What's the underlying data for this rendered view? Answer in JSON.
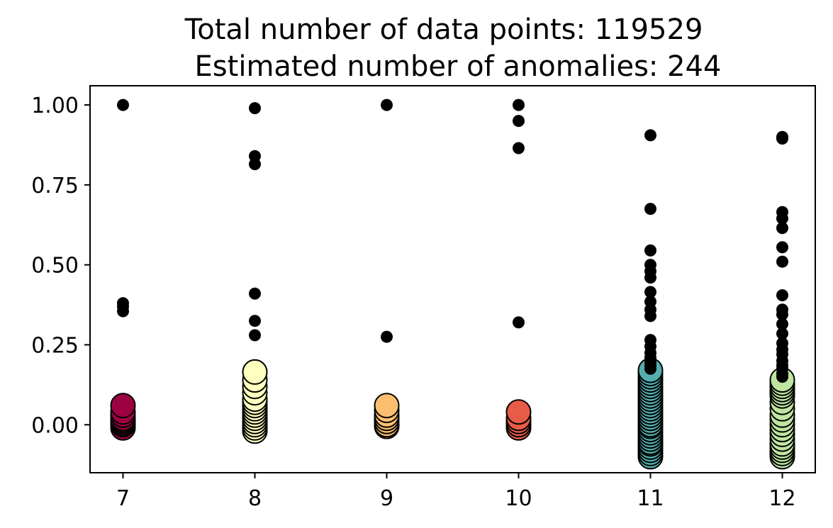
{
  "chart_data": {
    "type": "scatter",
    "title_line1": "Total number of data points: 119529",
    "title_line2": "Estimated number of anomalies: 244",
    "xlabel": "",
    "ylabel": "",
    "xlim": [
      6.75,
      12.25
    ],
    "ylim": [
      -0.15,
      1.06
    ],
    "grid": false,
    "xticks": [
      7,
      8,
      9,
      10,
      11,
      12
    ],
    "xtick_labels": [
      "7",
      "8",
      "9",
      "10",
      "11",
      "12"
    ],
    "yticks": [
      0.0,
      0.25,
      0.5,
      0.75,
      1.0
    ],
    "ytick_labels": [
      "0.00",
      "0.25",
      "0.50",
      "0.75",
      "1.00"
    ],
    "series": [
      {
        "x": 7,
        "color": "#9e0142",
        "normal": [
          -0.01,
          0.0,
          0.005,
          0.01,
          0.015,
          0.02,
          0.03,
          0.04,
          0.06
        ],
        "anomalies": [
          1.0,
          0.38,
          0.37,
          0.355
        ]
      },
      {
        "x": 8,
        "color": "#ffffbf",
        "normal": [
          -0.02,
          -0.01,
          0.0,
          0.01,
          0.02,
          0.03,
          0.04,
          0.05,
          0.06,
          0.07,
          0.08,
          0.1,
          0.12,
          0.14,
          0.165
        ],
        "anomalies": [
          0.99,
          0.84,
          0.815,
          0.41,
          0.325,
          0.28
        ]
      },
      {
        "x": 9,
        "color": "#fdbf6f",
        "normal": [
          -0.005,
          0.0,
          0.01,
          0.02,
          0.03,
          0.045,
          0.06
        ],
        "anomalies": [
          1.0,
          0.275
        ]
      },
      {
        "x": 10,
        "color": "#e85c47",
        "normal": [
          -0.01,
          0.0,
          0.01,
          0.02,
          0.04
        ],
        "anomalies": [
          1.0,
          0.95,
          0.865,
          0.32
        ]
      },
      {
        "x": 11,
        "color": "#54aead",
        "normal": [
          -0.1,
          -0.09,
          -0.08,
          -0.07,
          -0.06,
          -0.055,
          -0.045,
          -0.035,
          -0.025,
          -0.015,
          -0.005,
          0.0,
          0.01,
          0.02,
          0.03,
          0.04,
          0.05,
          0.06,
          0.07,
          0.08,
          0.09,
          0.1,
          0.11,
          0.12,
          0.13,
          0.14,
          0.15,
          0.16,
          0.17
        ],
        "anomalies": [
          0.905,
          0.675,
          0.545,
          0.5,
          0.48,
          0.46,
          0.415,
          0.385,
          0.36,
          0.34,
          0.265,
          0.245,
          0.225,
          0.21,
          0.195,
          0.185,
          0.175
        ]
      },
      {
        "x": 12,
        "color": "#bfe5a0",
        "normal": [
          -0.1,
          -0.09,
          -0.08,
          -0.07,
          -0.06,
          -0.045,
          -0.03,
          -0.015,
          0.0,
          0.015,
          0.03,
          0.05,
          0.07,
          0.09,
          0.1,
          0.11,
          0.12,
          0.13,
          0.14
        ],
        "anomalies": [
          0.9,
          0.895,
          0.665,
          0.645,
          0.615,
          0.555,
          0.51,
          0.405,
          0.36,
          0.345,
          0.315,
          0.285,
          0.255,
          0.235,
          0.22,
          0.2,
          0.185,
          0.175,
          0.16,
          0.15
        ]
      }
    ],
    "anomaly_color": "#000000"
  }
}
